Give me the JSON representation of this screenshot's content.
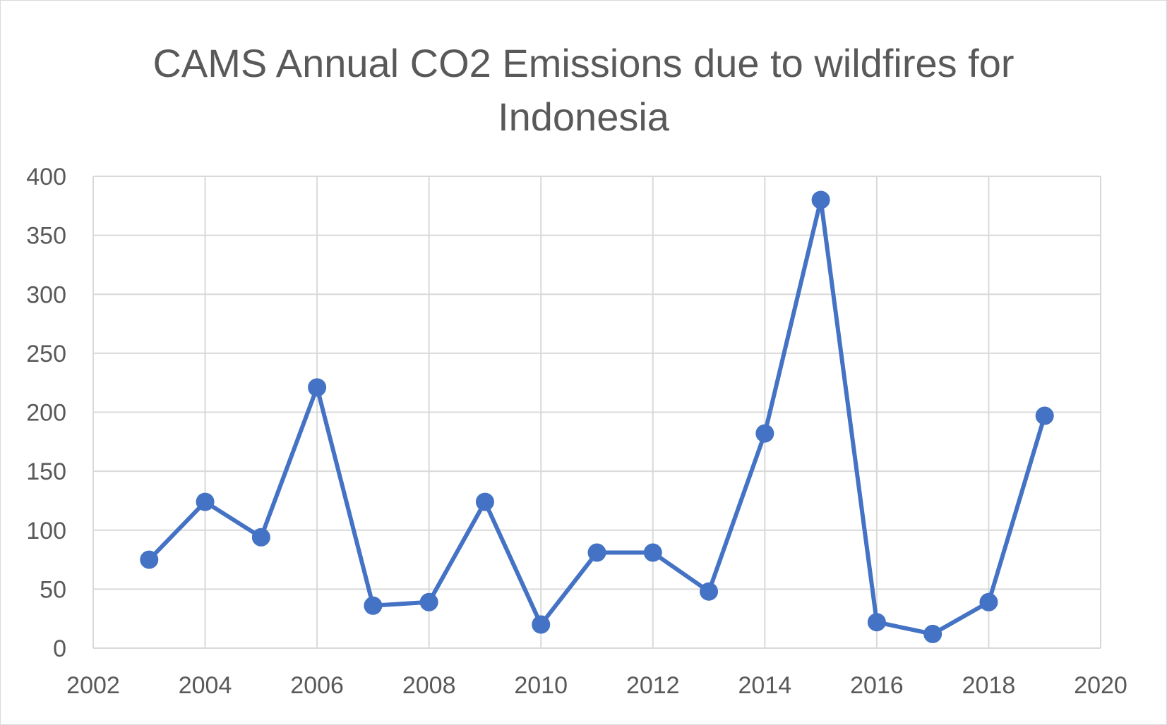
{
  "chart_data": {
    "type": "scatter",
    "title_lines": [
      "CAMS Annual CO2 Emissions due to wildfires for",
      "Indonesia"
    ],
    "xlabel": "",
    "ylabel": "",
    "xlim": [
      2002,
      2020
    ],
    "ylim": [
      0,
      400
    ],
    "x_ticks": [
      2002,
      2004,
      2006,
      2008,
      2010,
      2012,
      2014,
      2016,
      2018,
      2020
    ],
    "y_ticks": [
      0,
      50,
      100,
      150,
      200,
      250,
      300,
      350,
      400
    ],
    "grid": true,
    "legend": "none",
    "series": [
      {
        "color": "#4472C4",
        "points": [
          {
            "x": 2003,
            "y": 75
          },
          {
            "x": 2004,
            "y": 124
          },
          {
            "x": 2005,
            "y": 94
          },
          {
            "x": 2006,
            "y": 221
          },
          {
            "x": 2007,
            "y": 36
          },
          {
            "x": 2008,
            "y": 39
          },
          {
            "x": 2009,
            "y": 124
          },
          {
            "x": 2010,
            "y": 20
          },
          {
            "x": 2011,
            "y": 81
          },
          {
            "x": 2012,
            "y": 81
          },
          {
            "x": 2013,
            "y": 48
          },
          {
            "x": 2014,
            "y": 182
          },
          {
            "x": 2015,
            "y": 380
          },
          {
            "x": 2016,
            "y": 22
          },
          {
            "x": 2017,
            "y": 12
          },
          {
            "x": 2018,
            "y": 39
          },
          {
            "x": 2019,
            "y": 197
          }
        ]
      }
    ]
  }
}
